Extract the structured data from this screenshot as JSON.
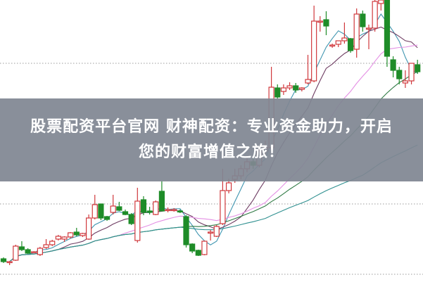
{
  "banner": {
    "line1": "股票配资平台官网 财神配资：专业资金助力，开启",
    "line2": "您的财富增值之旅！"
  },
  "chart_data": {
    "type": "candlestick",
    "grid": "horizontal dotted",
    "colors": {
      "up": "#d0383c",
      "down": "#1e8c28",
      "ma5": "#3f95b0",
      "ma10": "#6e3c62",
      "ma20": "#e48fe4",
      "ma30": "#2f7a44",
      "ma60": "#2f9090"
    },
    "moving_averages": [
      5,
      10,
      20,
      30,
      60
    ],
    "ohlc": [
      [
        3.2,
        3.4,
        2.6,
        2.8
      ],
      [
        2.7,
        2.9,
        2.3,
        2.8
      ],
      [
        3.0,
        5.2,
        2.9,
        5.0
      ],
      [
        4.9,
        5.7,
        4.3,
        4.5
      ],
      [
        4.5,
        4.7,
        3.9,
        4.0
      ],
      [
        4.2,
        4.3,
        4.0,
        4.2
      ],
      [
        3.8,
        4.9,
        3.6,
        4.7
      ],
      [
        4.8,
        6.0,
        4.6,
        5.2
      ],
      [
        5.2,
        5.9,
        5.0,
        5.7
      ],
      [
        6.0,
        6.6,
        5.8,
        6.4
      ],
      [
        6.0,
        6.4,
        5.6,
        6.3
      ],
      [
        6.3,
        7.0,
        6.1,
        6.9
      ],
      [
        7.0,
        7.6,
        6.4,
        6.6
      ],
      [
        6.5,
        6.9,
        6.3,
        6.8
      ],
      [
        6.0,
        9.5,
        5.9,
        9.0
      ],
      [
        9.0,
        12.3,
        8.8,
        10.9
      ],
      [
        11.0,
        11.0,
        8.7,
        9.0
      ],
      [
        9.2,
        9.3,
        8.6,
        8.8
      ],
      [
        9.8,
        12.3,
        9.5,
        10.7
      ],
      [
        10.6,
        11.3,
        10.0,
        10.1
      ],
      [
        9.9,
        10.2,
        9.4,
        9.5
      ],
      [
        9.5,
        9.7,
        8.0,
        8.2
      ],
      [
        5.8,
        13.3,
        5.5,
        11.4
      ],
      [
        11.6,
        12.1,
        9.4,
        9.8
      ],
      [
        10.0,
        10.6,
        9.5,
        9.8
      ],
      [
        9.5,
        11.5,
        9.4,
        11.3
      ],
      [
        12.8,
        14.2,
        10.0,
        10.0
      ],
      [
        10.2,
        10.5,
        9.8,
        10.2
      ],
      [
        10.2,
        10.4,
        9.9,
        10.2
      ],
      [
        10.0,
        10.2,
        9.7,
        9.9
      ],
      [
        9.2,
        9.4,
        4.8,
        5.2
      ],
      [
        5.3,
        5.4,
        4.0,
        4.3
      ],
      [
        4.4,
        4.5,
        3.6,
        3.7
      ],
      [
        3.8,
        5.8,
        3.7,
        5.7
      ],
      [
        7.0,
        7.3,
        5.8,
        7.0
      ],
      [
        6.4,
        8.0,
        6.3,
        7.8
      ],
      [
        8.2,
        16.0,
        8.0,
        12.9
      ],
      [
        12.9,
        14.6,
        12.5,
        14.0
      ],
      [
        14.5,
        16.0,
        14.0,
        15.0
      ],
      [
        15.0,
        16.5,
        14.5,
        16.0
      ],
      [
        16.0,
        17.5,
        15.5,
        17.0
      ],
      [
        17.0,
        18.0,
        16.0,
        16.5
      ],
      [
        16.5,
        19.0,
        16.2,
        18.5
      ],
      [
        18.5,
        20.0,
        18.0,
        19.0
      ],
      [
        19.0,
        30.5,
        18.5,
        27.6
      ],
      [
        27.5,
        28.0,
        26.0,
        26.2
      ],
      [
        27.0,
        28.0,
        26.5,
        27.5
      ],
      [
        27.5,
        28.3,
        27.2,
        27.8
      ],
      [
        27.8,
        28.2,
        26.8,
        27.2
      ],
      [
        27.3,
        27.6,
        27.0,
        27.5
      ],
      [
        28.2,
        32.2,
        28.0,
        28.7
      ],
      [
        28.5,
        39.2,
        28.3,
        37.0
      ],
      [
        37.0,
        37.7,
        35.5,
        37.0
      ],
      [
        37.2,
        38.4,
        35.0,
        36.3
      ],
      [
        33.6,
        33.8,
        33.2,
        33.6
      ],
      [
        33.7,
        34.2,
        33.3,
        34.2
      ],
      [
        34.2,
        36.8,
        33.8,
        34.6
      ],
      [
        34.5,
        34.6,
        32.5,
        32.8
      ],
      [
        33.0,
        38.8,
        31.8,
        38.0
      ],
      [
        38.0,
        38.5,
        35.5,
        36.2
      ],
      [
        36.0,
        36.5,
        33.0,
        36.0
      ],
      [
        36.0,
        40.0,
        35.5,
        39.8
      ],
      [
        39.5,
        40.0,
        38.5,
        40.0
      ],
      [
        40.0,
        40.0,
        30.5,
        32.0
      ],
      [
        31.5,
        32.0,
        29.0,
        30.0
      ],
      [
        30.0,
        30.5,
        28.0,
        28.8
      ],
      [
        28.2,
        30.0,
        27.5,
        28.5
      ],
      [
        28.5,
        31.0,
        28.0,
        31.0
      ],
      [
        30.8,
        31.5,
        29.5,
        29.8
      ]
    ]
  }
}
